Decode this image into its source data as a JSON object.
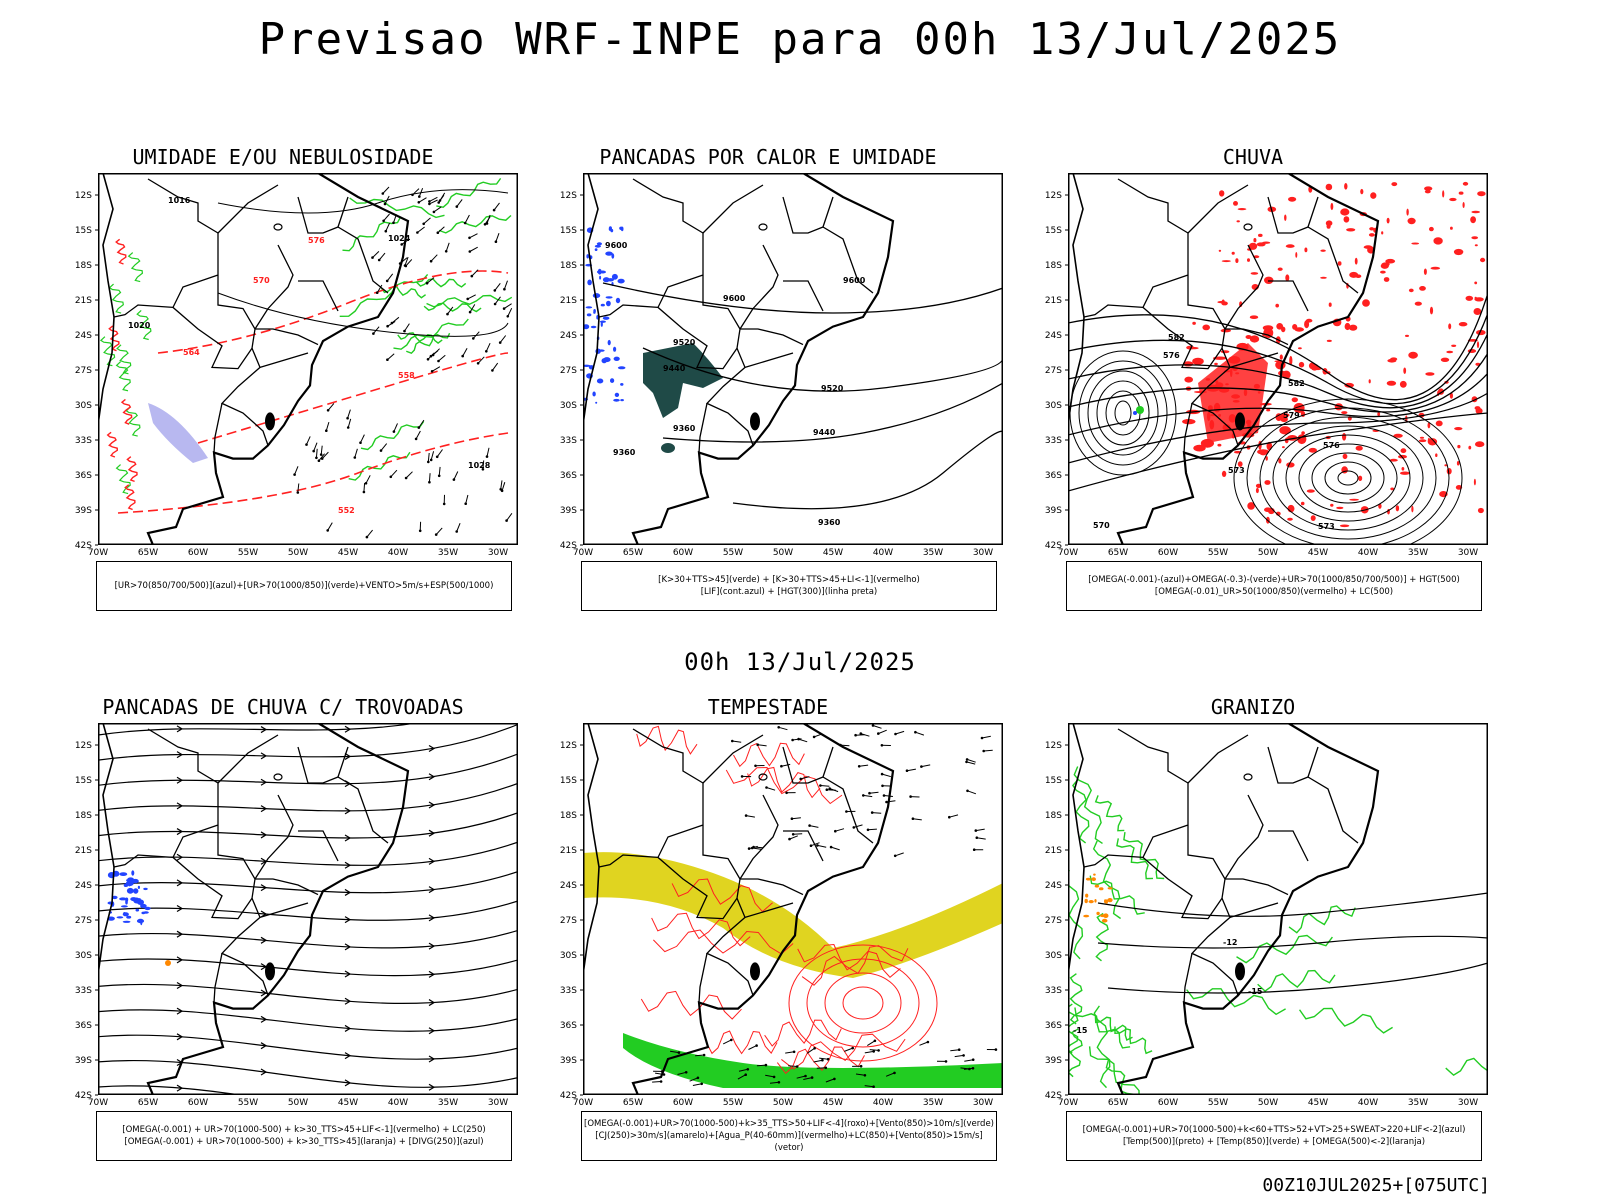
{
  "header": {
    "title": "Previsao WRF-INPE  para 00h 13/Jul/2025"
  },
  "middle_label": "00h 13/Jul/2025",
  "footer": "00Z10JUL2025+[075UTC]",
  "axes": {
    "lat_ticks": [
      "12S",
      "15S",
      "18S",
      "21S",
      "24S",
      "27S",
      "30S",
      "33S",
      "36S",
      "39S",
      "42S"
    ],
    "lon_ticks": [
      "70W",
      "65W",
      "60W",
      "55W",
      "50W",
      "45W",
      "40W",
      "35W",
      "30W"
    ]
  },
  "panels": [
    {
      "title": "UMIDADE E/OU NEBULOSIDADE",
      "legend": [
        "[UR>70(850/700/500)](azul)+[UR>70(1000/850)](verde)+VENTO>5m/s+ESP(500/1000)"
      ],
      "labels": [
        "1016",
        "1020",
        "1024",
        "1028",
        "570",
        "576",
        "564",
        "558",
        "552"
      ]
    },
    {
      "title": "PANCADAS POR CALOR E UMIDADE",
      "legend": [
        "[K>30+TTS>45](verde) + [K>30+TTS>45+LI<-1](vermelho)",
        "[LIF](cont.azul) + [HGT(300)](linha preta)"
      ],
      "labels": [
        "9600",
        "9520",
        "9440",
        "9360"
      ]
    },
    {
      "title": "CHUVA",
      "legend": [
        "[OMEGA(-0.001)-(azul)+OMEGA(-0.3)-(verde)+UR>70(1000/850/700/500)] + HGT(500)",
        "[OMEGA(-0.01)_UR>50(1000/850)(vermelho) + LC(500)"
      ],
      "labels": [
        "582",
        "576",
        "579",
        "573",
        "570"
      ]
    },
    {
      "title": "PANCADAS DE CHUVA C/ TROVOADAS",
      "legend": [
        "[OMEGA(-0.001) + UR>70(1000-500) + k>30_TTS>45+LIF<-1](vermelho) + LC(250)",
        "[OMEGA(-0.001) + UR>70(1000-500) + k>30_TTS>45](laranja) + [DIVG(250)](azul)"
      ],
      "labels": []
    },
    {
      "title": "TEMPESTADE",
      "legend": [
        "[OMEGA(-0.001)+UR>70(1000-500)+k>35_TTS>50+LIF<-4](roxo)+[Vento(850)>10m/s](verde)",
        "[CJ(250)>30m/s](amarelo)+[Agua_P(40-60mm)](vermelho)+LC(850)+[Vento(850)>15m/s](vetor)"
      ],
      "labels": []
    },
    {
      "title": "GRANIZO",
      "legend": [
        "[OMEGA(-0.001)+UR>70(1000-500)+k<60+TTS>52+VT>25+SWEAT>220+LIF<-2](azul)",
        "[Temp(500)](preto) + [Temp(850)](verde) + [OMEGA(500)<-2](laranja)"
      ],
      "labels": [
        "-12",
        "-15",
        "-15"
      ]
    }
  ],
  "colors": {
    "black": "#000000",
    "red": "#ff2020",
    "green": "#22cc22",
    "blue": "#2244ff",
    "teal": "#1f4a47",
    "yellow": "#e0d420",
    "lavender": "#b8b8f0",
    "orange": "#ff8800"
  }
}
